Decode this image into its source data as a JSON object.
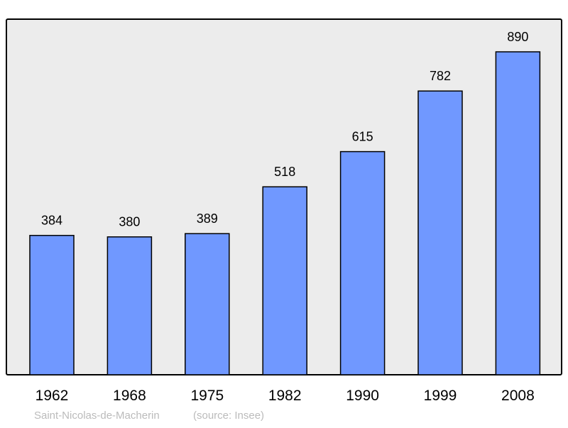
{
  "chart_data": {
    "type": "bar",
    "categories": [
      "1962",
      "1968",
      "1975",
      "1982",
      "1990",
      "1999",
      "2008"
    ],
    "values": [
      384,
      380,
      389,
      518,
      615,
      782,
      890
    ],
    "data_labels": [
      "384",
      "380",
      "389",
      "518",
      "615",
      "782",
      "890"
    ],
    "title": "",
    "xlabel": "",
    "ylabel": "",
    "ylim": [
      0,
      980
    ],
    "grid": false,
    "legend": "none",
    "caption": {
      "place": "Saint-Nicolas-de-Macherin",
      "source": "(source: Insee)"
    },
    "colors": {
      "bar": "#7098ff",
      "background": "#ececec",
      "border": "#000000",
      "caption": "#bbbbbb"
    }
  }
}
